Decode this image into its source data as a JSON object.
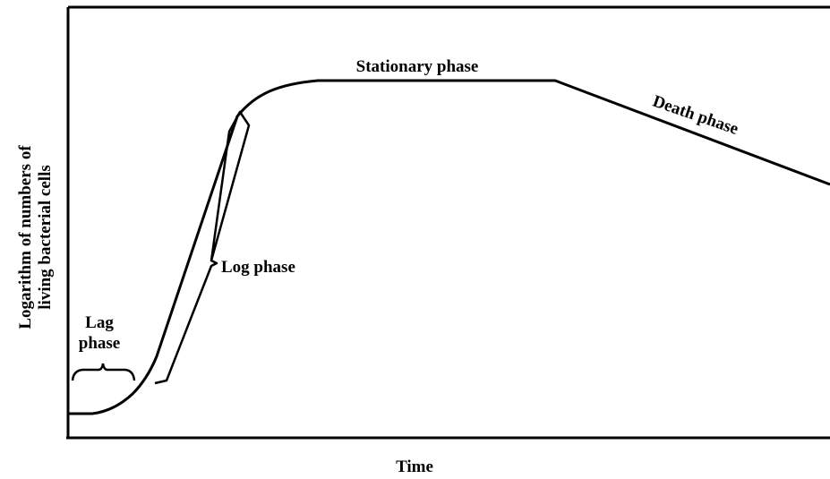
{
  "axes": {
    "x_label": "Time",
    "y_label": [
      "Logarithm of numbers of",
      "living bacterial cells"
    ]
  },
  "phases": [
    {
      "label": [
        "Lag",
        "phase"
      ]
    },
    {
      "label": "Log phase"
    },
    {
      "label": "Stationary phase"
    },
    {
      "label": "Death phase"
    }
  ]
}
